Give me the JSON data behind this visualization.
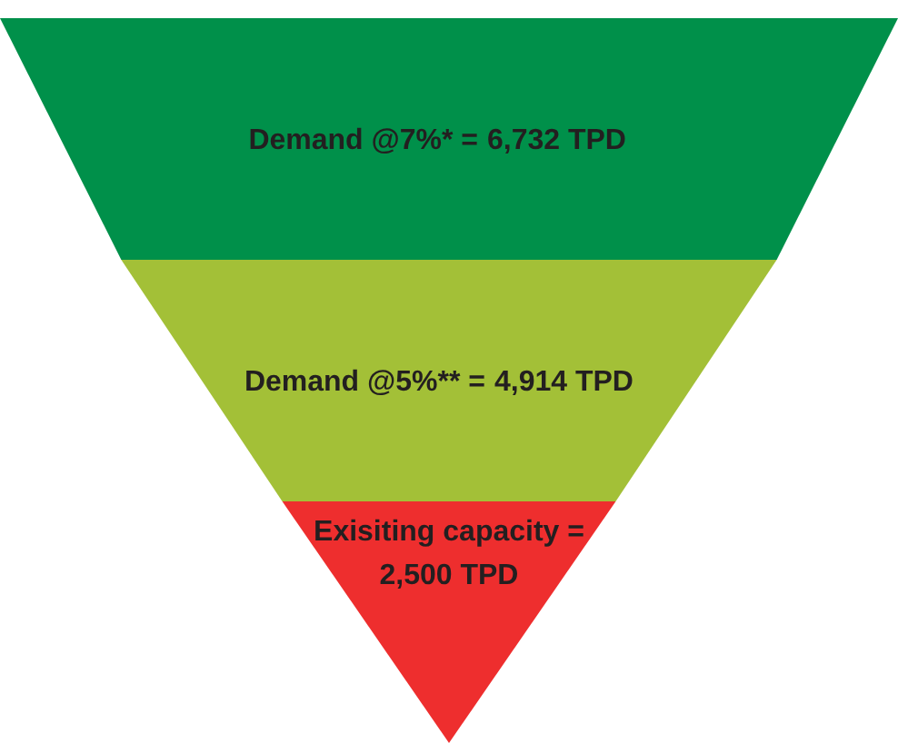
{
  "chart_data": {
    "type": "other",
    "categories": [
      "Demand @7%* =",
      "Demand @5%** =",
      "Exisiting capacity ="
    ],
    "values": [
      6732,
      4914,
      2500
    ],
    "value_labels": [
      "6,732 TPD",
      "4,914 TPD",
      "2,500 TPD"
    ],
    "colors": [
      "#00904a",
      "#a3c037",
      "#ee2e2e"
    ]
  }
}
